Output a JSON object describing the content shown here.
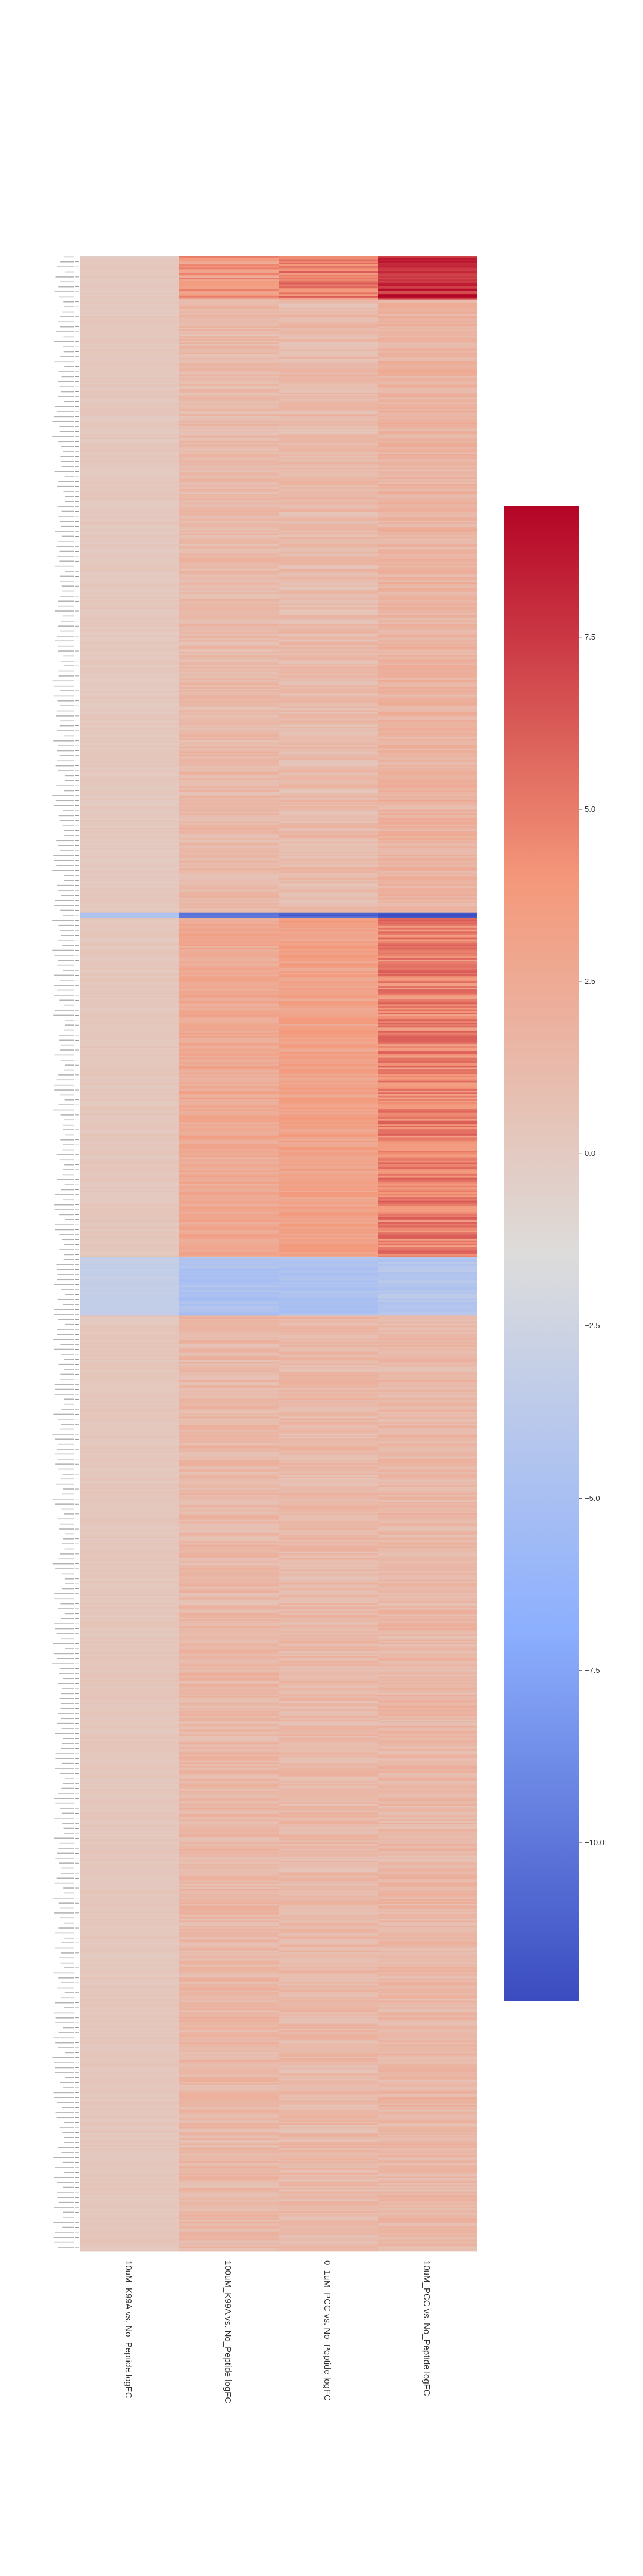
{
  "chart_data": {
    "type": "heatmap",
    "title": "",
    "columns": [
      "10uM_K99A vs. No_Peptide logFC",
      "100uM_K99A vs. No_Peptide logFC",
      "0_1uM_PCC vs. No_Peptide logFC",
      "10uM_PCC vs. No_Peptide logFC"
    ],
    "row_count": 1200,
    "row_labels_note": "hundreds of gene row labels, unreadable at this resolution",
    "colormap": "coolwarm",
    "color_range": [
      -12.3,
      9.4
    ],
    "colorbar_ticks": [
      7.5,
      5.0,
      2.5,
      0.0,
      -2.5,
      -5.0,
      -7.5,
      -10.0
    ],
    "colorbar_tick_labels": [
      "7.5",
      "5.0",
      "2.5",
      "0.0",
      "−2.5",
      "−5.0",
      "−7.5",
      "−10.0"
    ],
    "blocks": [
      {
        "rows": 26,
        "values": [
          1.3,
          4.4,
          5.6,
          8.2
        ]
      },
      {
        "rows": 369,
        "values": [
          1.4,
          2.4,
          2.3,
          2.8
        ]
      },
      {
        "rows": 3,
        "values": [
          -3.5,
          -11.0,
          -11.0,
          -11.5
        ]
      },
      {
        "rows": 204,
        "values": [
          1.5,
          3.5,
          4.0,
          5.3
        ]
      },
      {
        "rows": 35,
        "values": [
          -2.0,
          -3.8,
          -3.6,
          -3.0
        ]
      },
      {
        "rows": 563,
        "values": [
          1.5,
          2.5,
          2.4,
          2.5
        ]
      }
    ],
    "colors": {
      "min": "#3b4cc0",
      "neutral": "#dddcdb",
      "max": "#b40426"
    }
  }
}
